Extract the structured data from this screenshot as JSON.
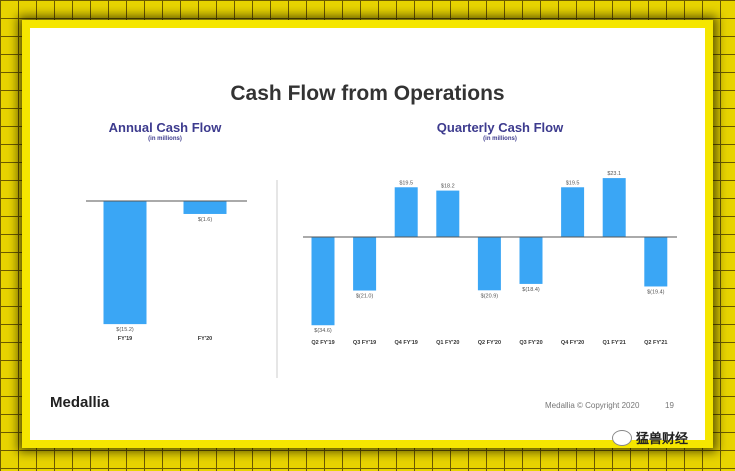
{
  "slide": {
    "title": "Cash Flow from Operations",
    "logo": "Medallia",
    "copyright": "Medallia © Copyright 2020",
    "page": "19"
  },
  "watermark": "猛兽财经",
  "colors": {
    "bar": "#3aa6f5",
    "title": "#3d3b8e"
  },
  "chart_data": [
    {
      "type": "bar",
      "title": "Annual Cash Flow",
      "subtitle": "(in millions)",
      "categories": [
        "FY'19",
        "FY'20"
      ],
      "values": [
        -15.2,
        -1.6
      ],
      "labels": [
        "$(15.2)",
        "$(1.6)"
      ]
    },
    {
      "type": "bar",
      "title": "Quarterly Cash Flow",
      "subtitle": "(in millions)",
      "categories": [
        "Q2 FY'19",
        "Q3 FY'19",
        "Q4 FY'19",
        "Q1 FY'20",
        "Q2 FY'20",
        "Q3 FY'20",
        "Q4 FY'20",
        "Q1 FY'21",
        "Q2 FY'21"
      ],
      "values": [
        -34.6,
        -21.0,
        19.5,
        18.2,
        -20.9,
        -18.4,
        19.5,
        23.1,
        -19.4
      ],
      "labels": [
        "$(34.6)",
        "$(21.0)",
        "$19.5",
        "$18.2",
        "$(20.9)",
        "$(18.4)",
        "$19.5",
        "$23.1",
        "$(19.4)"
      ]
    }
  ]
}
